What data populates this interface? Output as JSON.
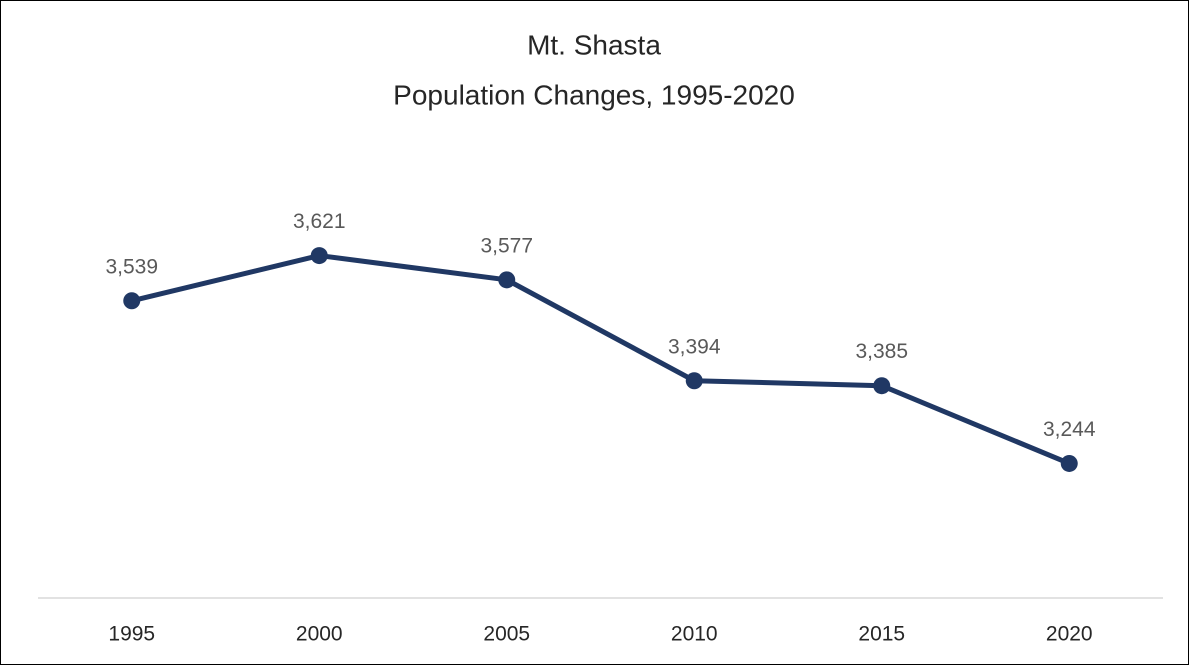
{
  "chart_data": {
    "type": "line",
    "title": "Mt. Shasta",
    "subtitle": "Population Changes, 1995-2020",
    "categories": [
      "1995",
      "2000",
      "2005",
      "2010",
      "2015",
      "2020"
    ],
    "values": [
      3539,
      3621,
      3577,
      3394,
      3385,
      3244
    ],
    "value_labels": [
      "3,539",
      "3,621",
      "3,577",
      "3,394",
      "3,385",
      "3,244"
    ],
    "color": "#203864",
    "ylim": [
      3000,
      3700
    ]
  }
}
